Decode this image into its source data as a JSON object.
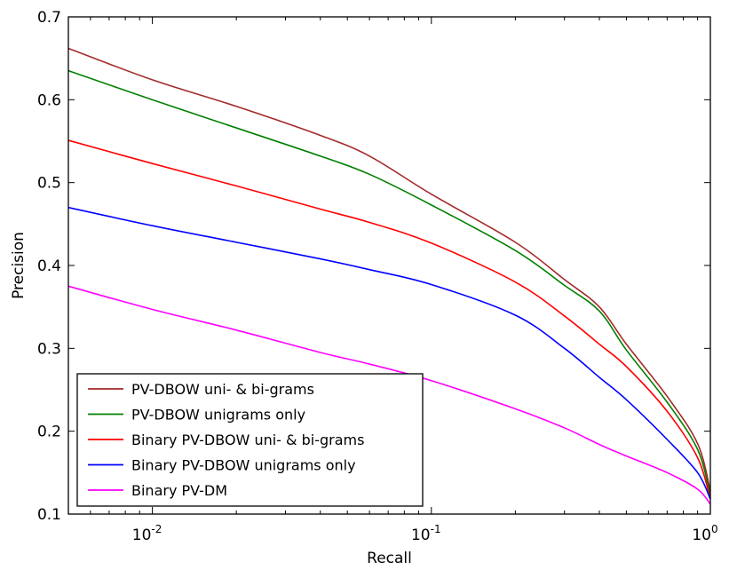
{
  "chart_data": {
    "type": "line",
    "title": "",
    "xlabel": "Recall",
    "ylabel": "Precision",
    "xscale": "log",
    "xlim": [
      0.005,
      1.0
    ],
    "ylim": [
      0.1,
      0.7
    ],
    "grid": false,
    "legend_position": "bottom-left",
    "x_ticks": [
      {
        "value": 0.01,
        "base": "10",
        "exp": "-2"
      },
      {
        "value": 0.1,
        "base": "10",
        "exp": "-1"
      },
      {
        "value": 1.0,
        "base": "10",
        "exp": "0"
      }
    ],
    "y_ticks": [
      {
        "value": 0.1,
        "label": "0.1"
      },
      {
        "value": 0.2,
        "label": "0.2"
      },
      {
        "value": 0.3,
        "label": "0.3"
      },
      {
        "value": 0.4,
        "label": "0.4"
      },
      {
        "value": 0.5,
        "label": "0.5"
      },
      {
        "value": 0.6,
        "label": "0.6"
      },
      {
        "value": 0.7,
        "label": "0.7"
      }
    ],
    "x": [
      0.005,
      0.01,
      0.02,
      0.04,
      0.06,
      0.1,
      0.2,
      0.3,
      0.4,
      0.5,
      0.7,
      0.9,
      1.0
    ],
    "series": [
      {
        "name": "PV-DBOW uni- & bi-grams",
        "color": "#a52a2a",
        "values": [
          0.662,
          0.624,
          0.592,
          0.557,
          0.532,
          0.486,
          0.428,
          0.383,
          0.35,
          0.305,
          0.242,
          0.185,
          0.128
        ]
      },
      {
        "name": "PV-DBOW unigrams only",
        "color": "#008000",
        "values": [
          0.635,
          0.6,
          0.566,
          0.532,
          0.51,
          0.473,
          0.418,
          0.376,
          0.345,
          0.298,
          0.235,
          0.178,
          0.122
        ]
      },
      {
        "name": "Binary PV-DBOW uni- & bi-grams",
        "color": "#ff0000",
        "values": [
          0.551,
          0.523,
          0.496,
          0.468,
          0.452,
          0.427,
          0.38,
          0.339,
          0.305,
          0.278,
          0.224,
          0.168,
          0.118
        ]
      },
      {
        "name": "Binary PV-DBOW unigrams only",
        "color": "#0000ff",
        "values": [
          0.47,
          0.448,
          0.428,
          0.408,
          0.395,
          0.377,
          0.34,
          0.3,
          0.265,
          0.238,
          0.19,
          0.15,
          0.118
        ]
      },
      {
        "name": "Binary PV-DM",
        "color": "#ff00ff",
        "values": [
          0.375,
          0.347,
          0.322,
          0.295,
          0.281,
          0.261,
          0.227,
          0.204,
          0.184,
          0.17,
          0.15,
          0.13,
          0.112
        ]
      }
    ]
  }
}
